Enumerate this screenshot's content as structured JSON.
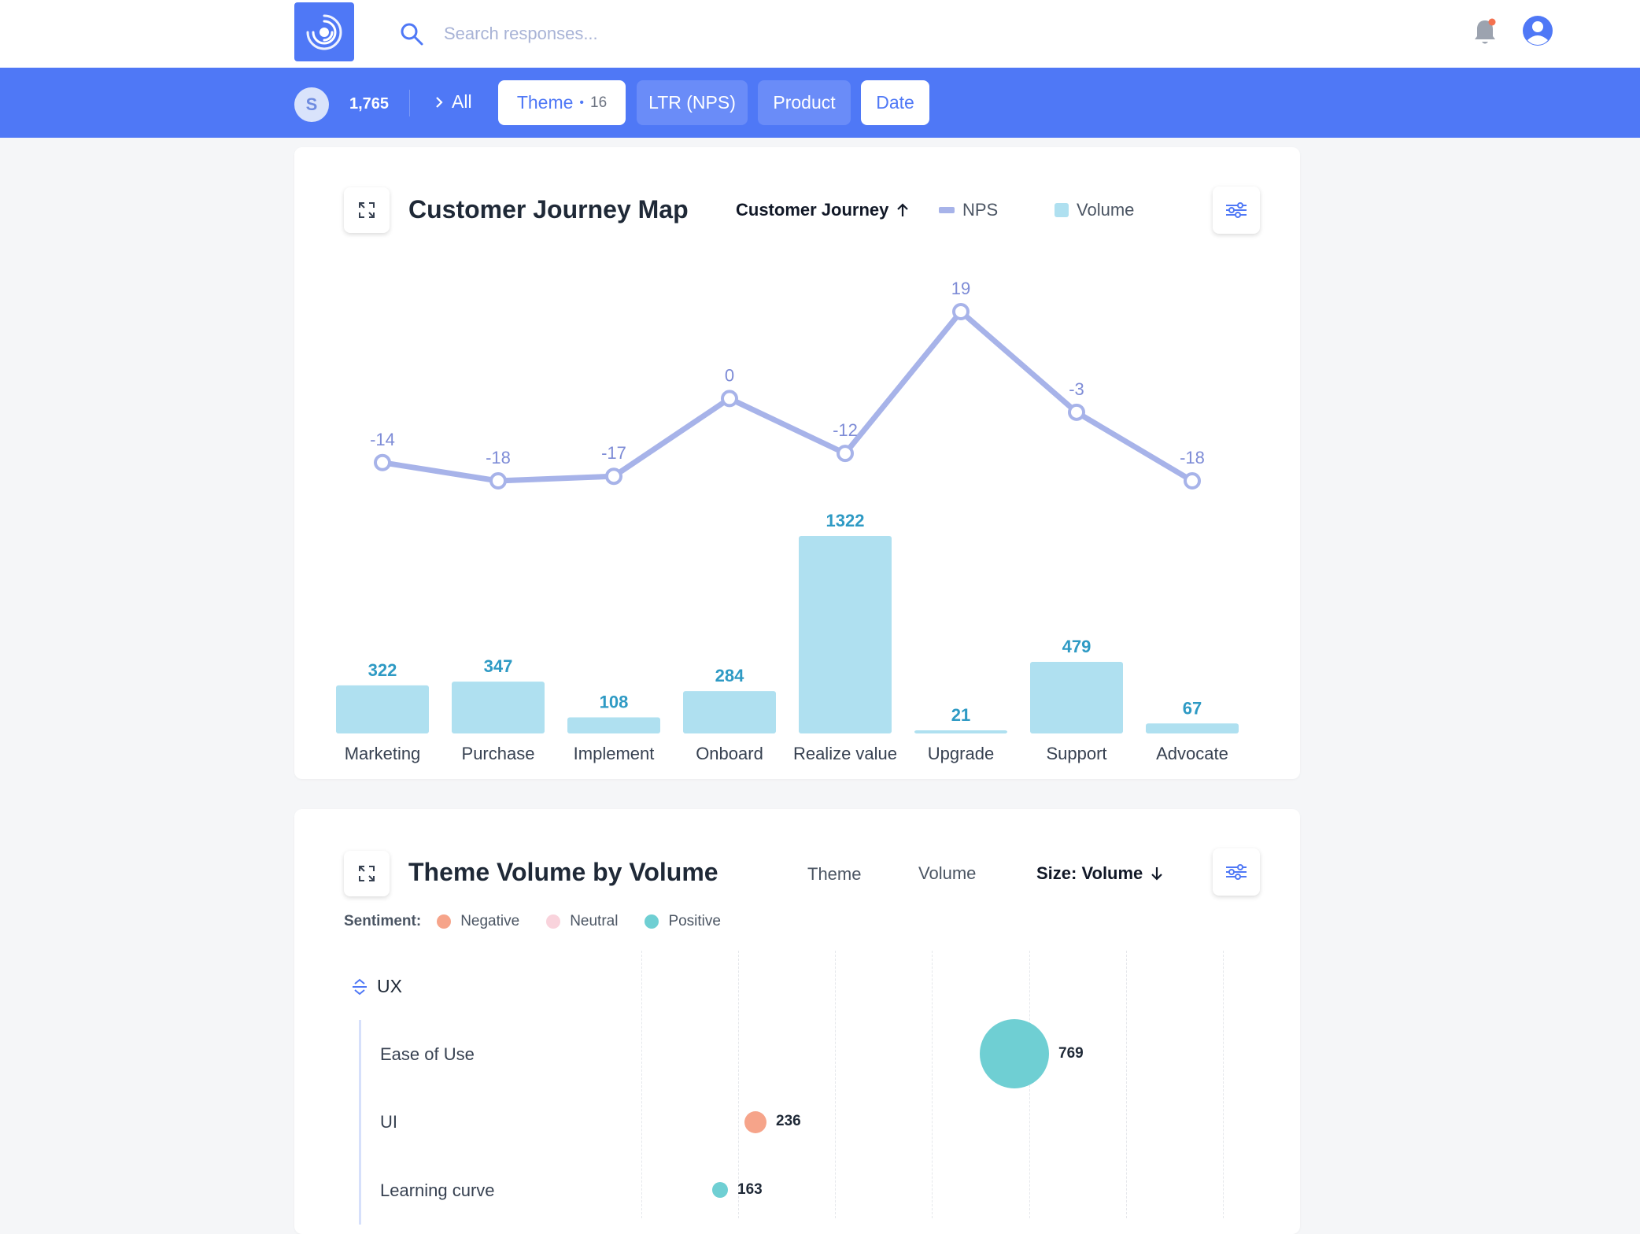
{
  "search": {
    "placeholder": "Search responses..."
  },
  "filterbar": {
    "avatar_letter": "S",
    "count": "1,765",
    "all_label": "All",
    "chips": [
      {
        "label": "Theme",
        "count": "16",
        "style": "white"
      },
      {
        "label": "LTR (NPS)",
        "style": "blue"
      },
      {
        "label": "Product",
        "style": "blue"
      },
      {
        "label": "Date",
        "style": "white"
      }
    ]
  },
  "journey_card": {
    "title": "Customer Journey Map",
    "sort_label": "Customer Journey",
    "legend_nps": "NPS",
    "legend_volume": "Volume"
  },
  "theme_card": {
    "title": "Theme Volume by Volume",
    "col_theme": "Theme",
    "col_volume": "Volume",
    "size_label": "Size: Volume",
    "sentiment_label": "Sentiment:",
    "sentiments": [
      {
        "label": "Negative",
        "color": "#f6a48a"
      },
      {
        "label": "Neutral",
        "color": "#f9d3dc"
      },
      {
        "label": "Positive",
        "color": "#6fcfd3"
      }
    ],
    "group": "UX",
    "themes": [
      {
        "name": "Ease of Use",
        "volume": 769,
        "sentiment": "Positive",
        "color": "#6fcfd3"
      },
      {
        "name": "UI",
        "volume": 236,
        "sentiment": "Negative",
        "color": "#f6a48a"
      },
      {
        "name": "Learning curve",
        "volume": 163,
        "sentiment": "Positive",
        "color": "#6fcfd3"
      }
    ]
  },
  "chart_data": {
    "type": "bar",
    "title": "Customer Journey Map",
    "categories": [
      "Marketing",
      "Purchase",
      "Implement",
      "Onboard",
      "Realize value",
      "Upgrade",
      "Support",
      "Advocate"
    ],
    "series": [
      {
        "name": "NPS",
        "type": "line",
        "color": "#a7b3e9",
        "values": [
          -14,
          -18,
          -17,
          0,
          -12,
          19,
          -3,
          -18
        ]
      },
      {
        "name": "Volume",
        "type": "bar",
        "color": "#afe0f0",
        "values": [
          322,
          347,
          108,
          284,
          1322,
          21,
          479,
          67
        ]
      }
    ],
    "legend": "top"
  },
  "colors": {
    "brand": "#4f78f6",
    "nps_line": "#a7b3e9",
    "volume_bar": "#afe0f0",
    "volume_label": "#2e9ac4"
  }
}
